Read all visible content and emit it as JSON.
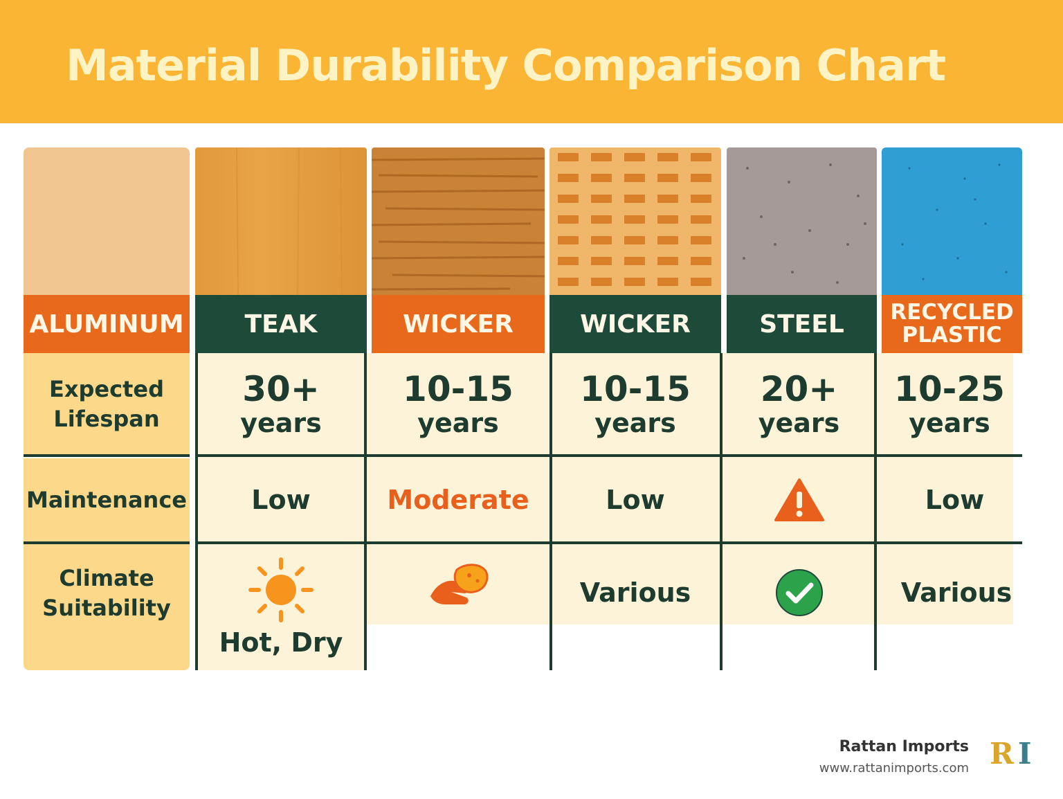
{
  "title": "Material Durability Comparison Chart",
  "row_labels": {
    "first_column_header": "ALUMINUM",
    "lifespan": "Expected Lifespan",
    "maintenance": "Maintenance",
    "climate": "Climate Suitability"
  },
  "chart_data": {
    "type": "table",
    "title": "Material Durability Comparison Chart",
    "columns": [
      "ALUMINUM",
      "TEAK",
      "WICKER",
      "WICKER",
      "STEEL",
      "RECYCLED PLASTIC"
    ],
    "rows": [
      {
        "label": "Expected Lifespan",
        "values": [
          "",
          "30+ years",
          "10-15 years",
          "10-15 years",
          "20+ years",
          "10-25 years"
        ]
      },
      {
        "label": "Maintenance",
        "values": [
          "",
          "Low",
          "Moderate",
          "Low",
          "warning-icon",
          "Low"
        ]
      },
      {
        "label": "Climate Suitability",
        "values": [
          "",
          "sun-icon Hot, Dry",
          "hand-icon",
          "Various",
          "check-icon",
          "Various"
        ]
      }
    ]
  },
  "materials": [
    {
      "name": "TEAK",
      "lifespan_num": "30+",
      "lifespan_unit": "years",
      "maintenance": "Low",
      "climate": "Hot, Dry",
      "climate_icon": "sun-icon"
    },
    {
      "name": "WICKER",
      "lifespan_num": "10-15",
      "lifespan_unit": "years",
      "maintenance": "Moderate",
      "climate": "",
      "climate_icon": "hand-icon"
    },
    {
      "name": "WICKER",
      "lifespan_num": "10-15",
      "lifespan_unit": "years",
      "maintenance": "Low",
      "climate": "Various",
      "climate_icon": ""
    },
    {
      "name": "STEEL",
      "lifespan_num": "20+",
      "lifespan_unit": "years",
      "maintenance": "",
      "maintenance_icon": "warning-icon",
      "climate": "",
      "climate_icon": "check-icon"
    },
    {
      "name": "RECYCLED",
      "name2": "PLASTIC",
      "lifespan_num": "10-25",
      "lifespan_unit": "years",
      "maintenance": "Low",
      "climate": "Various",
      "climate_icon": ""
    }
  ],
  "colors": {
    "header_bg": "#fbb534",
    "orange": "#e8691c",
    "dark_green": "#1e4a3a",
    "cell_bg": "#fdf3d9",
    "label_bg": "#fbd88a"
  },
  "brand": {
    "name": "Rattan Imports",
    "url": "www.rattanimports.com",
    "logo_r": "R",
    "logo_i": "I"
  }
}
